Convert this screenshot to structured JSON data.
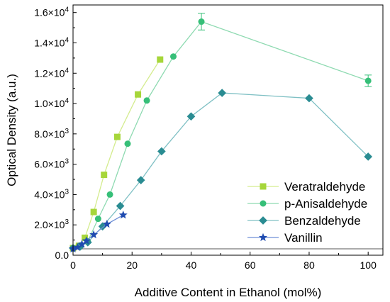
{
  "chart_data": {
    "type": "line",
    "xlabel": "Additive Content in Ethanol (mol%)",
    "ylabel": "Optical Density (a.u.)",
    "xlim": [
      0,
      105
    ],
    "ylim": [
      0,
      16500
    ],
    "x_ticks": [
      0,
      20,
      40,
      60,
      80,
      100
    ],
    "y_ticks": [
      {
        "value": 0,
        "base": "0.0",
        "exp": ""
      },
      {
        "value": 2000,
        "base": "2.0×10",
        "exp": "3"
      },
      {
        "value": 4000,
        "base": "4.0×10",
        "exp": "3"
      },
      {
        "value": 6000,
        "base": "6.0×10",
        "exp": "3"
      },
      {
        "value": 8000,
        "base": "8.0×10",
        "exp": "3"
      },
      {
        "value": 10000,
        "base": "1.0×10",
        "exp": "4"
      },
      {
        "value": 12000,
        "base": "1.2×10",
        "exp": "4"
      },
      {
        "value": 14000,
        "base": "1.4×10",
        "exp": "4"
      },
      {
        "value": 16000,
        "base": "1.6×10",
        "exp": "4"
      }
    ],
    "baseline": 420,
    "legend_position": "bottom-right",
    "series": [
      {
        "name": "Veratraldehyde",
        "marker": "square",
        "color": "#a6d63a",
        "line_color": "#d4ec8e",
        "x": [
          0,
          2,
          4,
          7,
          10.5,
          15,
          22,
          29.5
        ],
        "y": [
          470,
          620,
          1150,
          2850,
          5300,
          7800,
          10600,
          12900
        ]
      },
      {
        "name": "p-Anisaldehyde",
        "marker": "circle",
        "color": "#36bf78",
        "line_color": "#8edab1",
        "x": [
          0,
          2.5,
          5,
          8.5,
          12.5,
          18.5,
          25,
          34,
          43.5,
          100
        ],
        "y": [
          470,
          650,
          920,
          2400,
          4000,
          7350,
          10200,
          13100,
          15400,
          11500
        ],
        "error": [
          0,
          0,
          0,
          0,
          0,
          0,
          0,
          0,
          550,
          380
        ]
      },
      {
        "name": "Benzaldehyde",
        "marker": "diamond",
        "color": "#2a8c92",
        "line_color": "#7fc0c4",
        "x": [
          0,
          2.5,
          5,
          10,
          16,
          23,
          30,
          40,
          50.5,
          80,
          100
        ],
        "y": [
          470,
          580,
          850,
          1900,
          3250,
          4950,
          6850,
          9150,
          10700,
          10350,
          6500
        ]
      },
      {
        "name": "Vanillin",
        "marker": "star",
        "color": "#1f4bb0",
        "line_color": "#6e8fd6",
        "x": [
          0,
          1.5,
          3,
          4.5,
          7,
          11.5,
          17
        ],
        "y": [
          420,
          520,
          720,
          950,
          1350,
          2050,
          2650
        ]
      }
    ]
  }
}
